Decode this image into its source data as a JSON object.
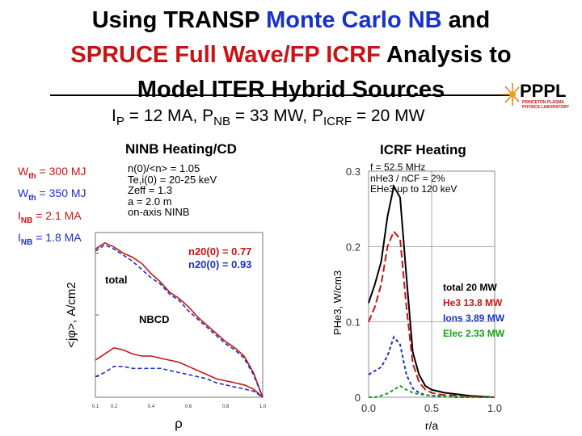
{
  "title": {
    "t1": "Using TRANSP ",
    "t2": "Monte Carlo NB",
    "t3": " and",
    "t4": "SPRUCE Full Wave/FP ICRF",
    "t5": " Analysis to",
    "t6": "Model ITER Hybrid Sources"
  },
  "logo": {
    "text": "PPPL",
    "line1": "PRINCETON PLASMA",
    "line2": "PHYSICS LABORATORY"
  },
  "params": {
    "ip_sym": "I",
    "ip_sub": "P",
    "ip_val": " = 12 MA, ",
    "pnb_sym": "P",
    "pnb_sub": "NB",
    "pnb_val": " = 33 MW, ",
    "picrf_sym": "P",
    "picrf_sub": "ICRF",
    "picrf_val": " = 20 MW"
  },
  "nb_heading": "NINB Heating/CD",
  "icrf_heading": "ICRF Heating",
  "nb_stats": [
    {
      "sym": "W",
      "sub": "th",
      "val": " = 300 MJ",
      "color": "#c81414"
    },
    {
      "sym": "W",
      "sub": "th",
      "val": " = 350 MJ",
      "color": "#1a32c8"
    },
    {
      "sym": "I",
      "sub": "NB",
      "val": " = 2.1 MA",
      "color": "#c81414"
    },
    {
      "sym": "I",
      "sub": "NB",
      "val": " = 1.8 MA",
      "color": "#1a32c8"
    }
  ],
  "nb_params": [
    "n(0)/<n> = 1.05",
    "Te,i(0) = 20-25 keV",
    "Zeff = 1.3",
    "a = 2.0 m",
    "on-axis NINB"
  ],
  "icrf_params": [
    "f = 52.5 MHz",
    "nHe3 / nCF = 2%",
    "EHe3 up to 120 keV"
  ],
  "colors": {
    "red": "#c81414",
    "blue": "#1a32c8",
    "green": "#14a014",
    "black": "#000000"
  },
  "chart_data": [
    {
      "type": "line",
      "ylabel": "<jφ>, A/cm2",
      "xlabel": "ρ",
      "xticks": [
        "0.1",
        "0.2",
        "0.4",
        "0.6",
        "0.8",
        "1.0"
      ],
      "xlim": [
        0.1,
        1.0
      ],
      "ylim": [
        0,
        80
      ],
      "annotations": [
        "total",
        "NBCD"
      ],
      "legend": [
        "n20(0) = 0.77",
        "n20(0) = 0.93"
      ],
      "legend_position": "top-right",
      "x": [
        0.1,
        0.15,
        0.2,
        0.25,
        0.3,
        0.35,
        0.4,
        0.45,
        0.5,
        0.55,
        0.6,
        0.65,
        0.7,
        0.75,
        0.8,
        0.85,
        0.9,
        0.95,
        1.0
      ],
      "series": [
        {
          "name": "n20(0) = 0.77",
          "color": "#c81414",
          "label": "total",
          "values": [
            72,
            75,
            73,
            70,
            68,
            65,
            60,
            56,
            51,
            48,
            44,
            39,
            35,
            31,
            27,
            24,
            20,
            12,
            0
          ]
        },
        {
          "name": "n20(0) = 0.93",
          "color": "#1a32c8",
          "label": "total",
          "values": [
            71,
            74,
            72,
            69,
            66,
            62,
            58,
            55,
            50,
            47,
            42,
            38,
            34,
            30,
            26,
            23,
            19,
            11,
            0
          ]
        },
        {
          "name": "n20(0) = 0.77",
          "color": "#c81414",
          "label": "NBCD",
          "values": [
            18,
            21,
            24,
            23,
            21,
            20,
            20,
            19,
            18,
            17,
            15,
            13,
            11,
            9,
            8,
            7,
            6,
            4,
            0
          ]
        },
        {
          "name": "n20(0) = 0.93",
          "color": "#1a32c8",
          "label": "NBCD",
          "values": [
            10,
            12,
            15,
            15,
            14,
            14,
            14,
            14,
            13,
            12,
            11,
            10,
            9,
            7,
            6,
            5,
            4,
            3,
            0
          ]
        }
      ]
    },
    {
      "type": "line",
      "ylabel": "PHe3, W/cm3",
      "xlabel": "r/a",
      "xticks": [
        "0.0",
        "0.5",
        "1.0"
      ],
      "yticks": [
        "0",
        "0.1",
        "0.2",
        "0.3"
      ],
      "xlim": [
        0,
        1.0
      ],
      "ylim": [
        0,
        0.3
      ],
      "grid": true,
      "legend_position": "right",
      "x": [
        0.0,
        0.05,
        0.1,
        0.15,
        0.2,
        0.25,
        0.3,
        0.35,
        0.4,
        0.45,
        0.5,
        0.55,
        0.6,
        0.7,
        0.8,
        0.9,
        1.0
      ],
      "series": [
        {
          "name": "total  20 MW",
          "color": "#000000",
          "values": [
            0.125,
            0.15,
            0.18,
            0.24,
            0.28,
            0.265,
            0.16,
            0.06,
            0.03,
            0.015,
            0.01,
            0.008,
            0.006,
            0.004,
            0.002,
            0.001,
            0.0
          ]
        },
        {
          "name": "He3  13.8 MW",
          "color": "#c81414",
          "values": [
            0.1,
            0.12,
            0.15,
            0.2,
            0.22,
            0.21,
            0.12,
            0.045,
            0.02,
            0.01,
            0.006,
            0.004,
            0.003,
            0.002,
            0.001,
            0.0,
            0.0
          ]
        },
        {
          "name": "Ions  3.89 MW",
          "color": "#1a32c8",
          "values": [
            0.03,
            0.035,
            0.04,
            0.055,
            0.08,
            0.07,
            0.03,
            0.012,
            0.006,
            0.003,
            0.002,
            0.001,
            0.001,
            0.0,
            0.0,
            0.0,
            0.0
          ]
        },
        {
          "name": "Elec  2.33 MW",
          "color": "#14a014",
          "values": [
            0.0,
            0.0,
            0.002,
            0.005,
            0.01,
            0.015,
            0.01,
            0.006,
            0.004,
            0.003,
            0.002,
            0.002,
            0.001,
            0.001,
            0.0,
            0.0,
            0.0
          ]
        }
      ]
    }
  ]
}
